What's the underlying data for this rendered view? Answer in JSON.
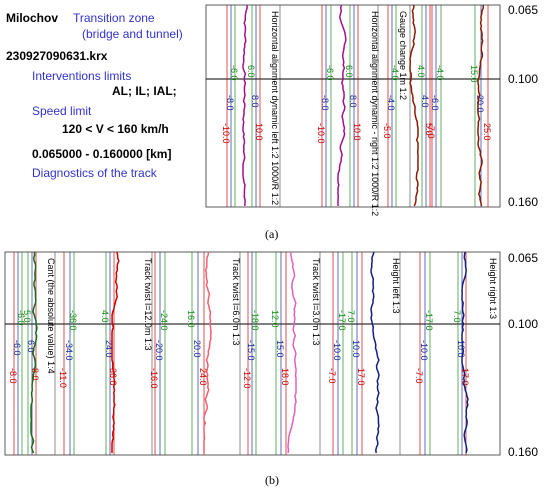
{
  "info": {
    "location": "Milochov",
    "zone_l1": "Transition zone",
    "zone_l2": "(bridge and tunnel)",
    "file": "230927090631.krx",
    "limits_heading": "Interventions limits",
    "limits": "AL; IL; IAL;",
    "speed_heading": "Speed limit",
    "speed": "120 < V < 160 km/h",
    "range": "0.065000 - 0.160000 [km]",
    "diagnostics": "Diagnostics of the track"
  },
  "captions": {
    "a": "(a)",
    "b": "(b)"
  },
  "chart_data": [
    {
      "panel": "a",
      "type": "line",
      "y_axis": {
        "ticks": [
          "0.065",
          "0.100",
          "0.160"
        ],
        "unit": "km"
      },
      "channels": [
        {
          "label": "Horizontal alignment dynamic left 1:2 1000/R 1:2",
          "color": "#a0108c",
          "limits": {
            "left": [
              "10.0",
              "8.0",
              "6.0"
            ],
            "right": [
              "6.0",
              "8.0",
              "10.0"
            ]
          }
        },
        {
          "label": "Horizontal alignment dynamic - right 1:2 1000/R 1:2",
          "color": "#a0108c",
          "limits": {
            "left": [
              "10.0",
              "8.0",
              "6.0"
            ],
            "right": [
              "6.0",
              "8.0",
              "10.0"
            ]
          }
        },
        {
          "label": "Gauge change 1m 1:2",
          "color": "#8b1a00",
          "limits": {
            "left": [
              "5.0",
              "4.0",
              "4.0"
            ],
            "right": [
              "4.0",
              "4.0",
              "5.0"
            ]
          }
        },
        {
          "label": "",
          "color": "#8b1a00",
          "limits": {
            "left": [
              "7.0",
              "6.0",
              "4.0"
            ],
            "right": [
              "15.0",
              "20.0",
              "25.0"
            ]
          }
        }
      ]
    },
    {
      "panel": "b",
      "type": "line",
      "y_axis": {
        "ticks": [
          "0.065",
          "0.100",
          "0.160"
        ],
        "unit": "km"
      },
      "channels": [
        {
          "label": "Cant (the absolute value) 1:4",
          "color": "#1a6b1a",
          "limits": {
            "left": [
              "8.0",
              "6.0",
              "6.0"
            ],
            "right": [
              "5.0",
              "6.0",
              "8.0"
            ]
          }
        },
        {
          "label": "Track twist l=12.0m 1:3",
          "color": "#cc0000",
          "limits": {
            "left": [
              "11.0",
              "34.0",
              "36.0"
            ],
            "right": [
              "4.0",
              "24.0",
              "36.0"
            ]
          }
        },
        {
          "label": "Track twist l=6.0m 1:3",
          "color": "#f06070",
          "limits": {
            "left": [
              "16.0",
              "20.0",
              "24.0"
            ],
            "right": [
              "16.0",
              "20.0",
              "24.0"
            ]
          }
        },
        {
          "label": "Track twist l=3.0m 1:3",
          "color": "#e060c0",
          "limits": {
            "left": [
              "12.0",
              "15.0",
              "18.0"
            ],
            "right": [
              "12.0",
              "15.0",
              "18.0"
            ]
          }
        },
        {
          "label": "Height left 1:3",
          "color": "#102080",
          "limits": {
            "left": [
              "7.0",
              "10.0",
              "17.0"
            ],
            "right": [
              "7.0",
              "10.0",
              "17.0"
            ]
          }
        },
        {
          "label": "Height right 1:3",
          "color": "#102080",
          "limits": {
            "left": [
              "7.0",
              "10.0",
              "17.0"
            ],
            "right": [
              "7.0",
              "10.0",
              "17.0"
            ]
          }
        }
      ]
    }
  ]
}
